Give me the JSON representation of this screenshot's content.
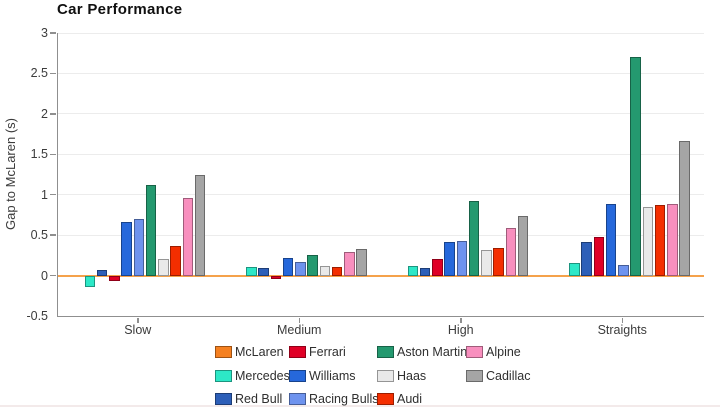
{
  "chart_data": {
    "type": "bar",
    "title": "Car Performance",
    "ylabel": "Gap to McLaren (s)",
    "xlabel": "",
    "categories": [
      "Slow",
      "Medium",
      "High",
      "Straights"
    ],
    "series": [
      {
        "name": "McLaren",
        "color": "#F58020",
        "values": [
          0.0,
          0.0,
          0.0,
          0.0
        ]
      },
      {
        "name": "Mercedes",
        "color": "#2DE8C7",
        "values": [
          -0.14,
          0.11,
          0.12,
          0.15
        ]
      },
      {
        "name": "Red Bull",
        "color": "#2D5FB8",
        "values": [
          0.07,
          0.09,
          0.09,
          0.41
        ]
      },
      {
        "name": "Ferrari",
        "color": "#E00026",
        "values": [
          -0.07,
          -0.04,
          0.21,
          0.48
        ]
      },
      {
        "name": "Williams",
        "color": "#2668DB",
        "values": [
          0.66,
          0.22,
          0.41,
          0.88
        ]
      },
      {
        "name": "Racing Bulls",
        "color": "#6E93EE",
        "values": [
          0.7,
          0.17,
          0.43,
          0.13
        ]
      },
      {
        "name": "Aston Martin",
        "color": "#24996F",
        "values": [
          1.12,
          0.26,
          0.92,
          2.7
        ]
      },
      {
        "name": "Haas",
        "color": "#E9E9E9",
        "values": [
          0.2,
          0.12,
          0.32,
          0.85
        ]
      },
      {
        "name": "Audi",
        "color": "#F42E00",
        "values": [
          0.36,
          0.1,
          0.34,
          0.87
        ]
      },
      {
        "name": "Alpine",
        "color": "#F88FBE",
        "values": [
          0.96,
          0.29,
          0.59,
          0.89
        ]
      },
      {
        "name": "Cadillac",
        "color": "#A5A5A5",
        "values": [
          1.25,
          0.33,
          0.74,
          1.66
        ]
      }
    ],
    "ylim": [
      -0.5,
      3
    ],
    "yticks": [
      3,
      2.5,
      2,
      1.5,
      1,
      0.5,
      0,
      -0.5
    ],
    "grid": true,
    "zero_line_color": "#F5A24B",
    "legend_position": "bottom",
    "legend_rows": [
      [
        "McLaren",
        "Ferrari",
        "Aston Martin",
        "Alpine"
      ],
      [
        "Mercedes",
        "Williams",
        "Haas",
        "Cadillac"
      ],
      [
        "Red Bull",
        "Racing Bulls",
        "Audi"
      ]
    ]
  },
  "colors": {
    "background": "#FFFFFF",
    "axis": "#8F8F8F",
    "grid": "#ECECEC",
    "tick_text": "#3C3C3C",
    "title_text": "#101010"
  }
}
